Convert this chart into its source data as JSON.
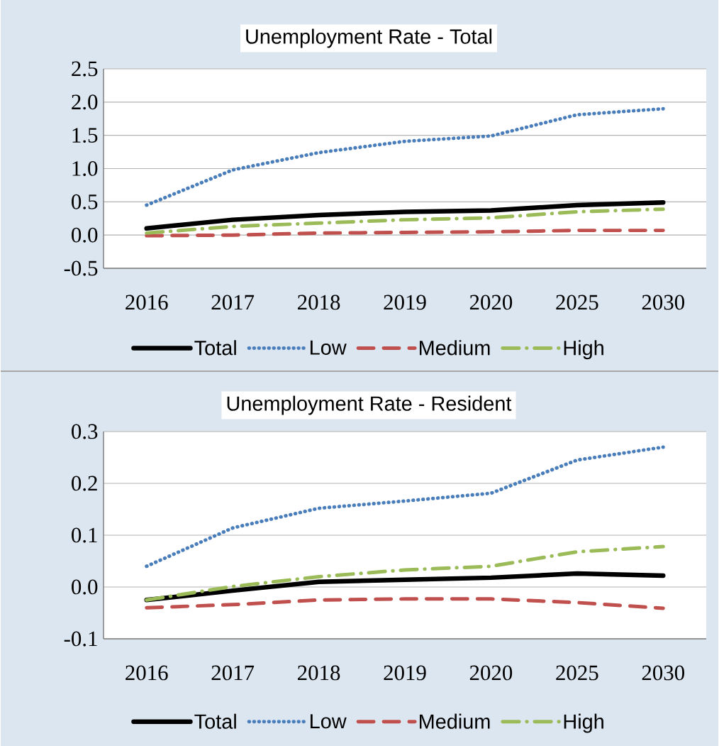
{
  "chart_data": [
    {
      "type": "line",
      "title": "Unemployment Rate - Total",
      "categories": [
        "2016",
        "2017",
        "2018",
        "2019",
        "2020",
        "2025",
        "2030"
      ],
      "ylim": [
        -0.5,
        2.5
      ],
      "yticks": [
        {
          "value": -0.5,
          "label": "-0.5"
        },
        {
          "value": 0,
          "label": "0.0"
        },
        {
          "value": 0.5,
          "label": "0.5"
        },
        {
          "value": 1,
          "label": "1.0"
        },
        {
          "value": 1.5,
          "label": "1.5"
        },
        {
          "value": 2,
          "label": "2.0"
        },
        {
          "value": 2.5,
          "label": "2.5"
        }
      ],
      "grid": "y",
      "legend": "bottom",
      "series": [
        {
          "name": "Total",
          "color": "#000000",
          "line_style": "solid",
          "values": [
            0.1,
            0.23,
            0.3,
            0.35,
            0.37,
            0.45,
            0.49
          ]
        },
        {
          "name": "Low",
          "color": "#4a7ebb",
          "line_style": "dotted",
          "values": [
            0.45,
            0.98,
            1.24,
            1.41,
            1.49,
            1.81,
            1.9
          ]
        },
        {
          "name": "Medium",
          "color": "#c0504d",
          "line_style": "dashed",
          "values": [
            -0.01,
            0.0,
            0.03,
            0.04,
            0.05,
            0.07,
            0.07
          ]
        },
        {
          "name": "High",
          "color": "#9bbb59",
          "line_style": "dashdot",
          "values": [
            0.03,
            0.13,
            0.18,
            0.23,
            0.26,
            0.35,
            0.39
          ]
        }
      ]
    },
    {
      "type": "line",
      "title": "Unemployment Rate - Resident",
      "categories": [
        "2016",
        "2017",
        "2018",
        "2019",
        "2020",
        "2025",
        "2030"
      ],
      "ylim": [
        -0.1,
        0.3
      ],
      "yticks": [
        {
          "value": -0.1,
          "label": "-0.1"
        },
        {
          "value": 0,
          "label": "0.0"
        },
        {
          "value": 0.1,
          "label": "0.1"
        },
        {
          "value": 0.2,
          "label": "0.2"
        },
        {
          "value": 0.3,
          "label": "0.3"
        }
      ],
      "grid": "y",
      "legend": "bottom",
      "series": [
        {
          "name": "Total",
          "color": "#000000",
          "line_style": "solid",
          "values": [
            -0.025,
            -0.007,
            0.01,
            0.014,
            0.018,
            0.026,
            0.022
          ]
        },
        {
          "name": "Low",
          "color": "#4a7ebb",
          "line_style": "dotted",
          "values": [
            0.04,
            0.114,
            0.152,
            0.166,
            0.181,
            0.245,
            0.27
          ]
        },
        {
          "name": "Medium",
          "color": "#c0504d",
          "line_style": "dashed",
          "values": [
            -0.04,
            -0.034,
            -0.025,
            -0.023,
            -0.023,
            -0.03,
            -0.041
          ]
        },
        {
          "name": "High",
          "color": "#9bbb59",
          "line_style": "dashdot",
          "values": [
            -0.025,
            0.001,
            0.02,
            0.033,
            0.04,
            0.068,
            0.078
          ]
        }
      ]
    }
  ]
}
